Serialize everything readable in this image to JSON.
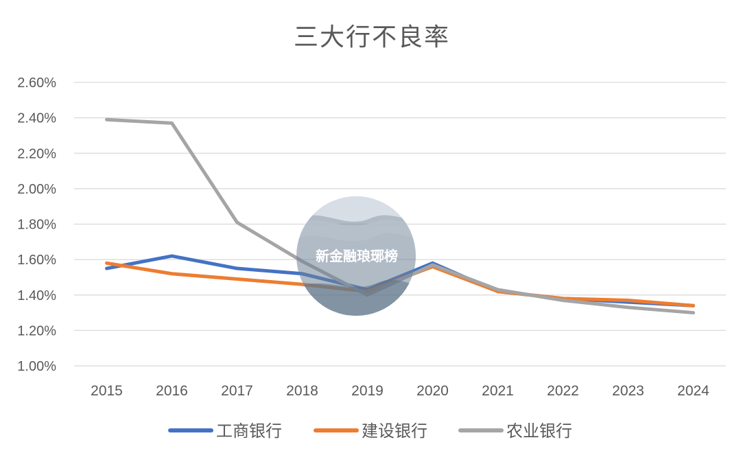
{
  "chart_data": {
    "type": "line",
    "title": "三大行不良率",
    "xlabel": "",
    "ylabel": "",
    "categories": [
      "2015",
      "2016",
      "2017",
      "2018",
      "2019",
      "2020",
      "2021",
      "2022",
      "2023",
      "2024"
    ],
    "y_ticks": [
      "1.00%",
      "1.20%",
      "1.40%",
      "1.60%",
      "1.80%",
      "2.00%",
      "2.20%",
      "2.40%",
      "2.60%"
    ],
    "ylim": [
      1.0,
      2.6
    ],
    "grid": true,
    "legend_position": "bottom",
    "series": [
      {
        "name": "工商银行",
        "color": "#4472C4",
        "values": [
          1.55,
          1.62,
          1.55,
          1.52,
          1.43,
          1.58,
          1.42,
          1.38,
          1.36,
          1.34
        ]
      },
      {
        "name": "建设银行",
        "color": "#ED7D31",
        "values": [
          1.58,
          1.52,
          1.49,
          1.46,
          1.42,
          1.56,
          1.42,
          1.38,
          1.37,
          1.34
        ]
      },
      {
        "name": "农业银行",
        "color": "#A5A5A5",
        "values": [
          2.39,
          2.37,
          1.81,
          1.59,
          1.4,
          1.57,
          1.43,
          1.37,
          1.33,
          1.3
        ]
      }
    ]
  },
  "watermark": {
    "text": "新金融琅琊榜"
  }
}
